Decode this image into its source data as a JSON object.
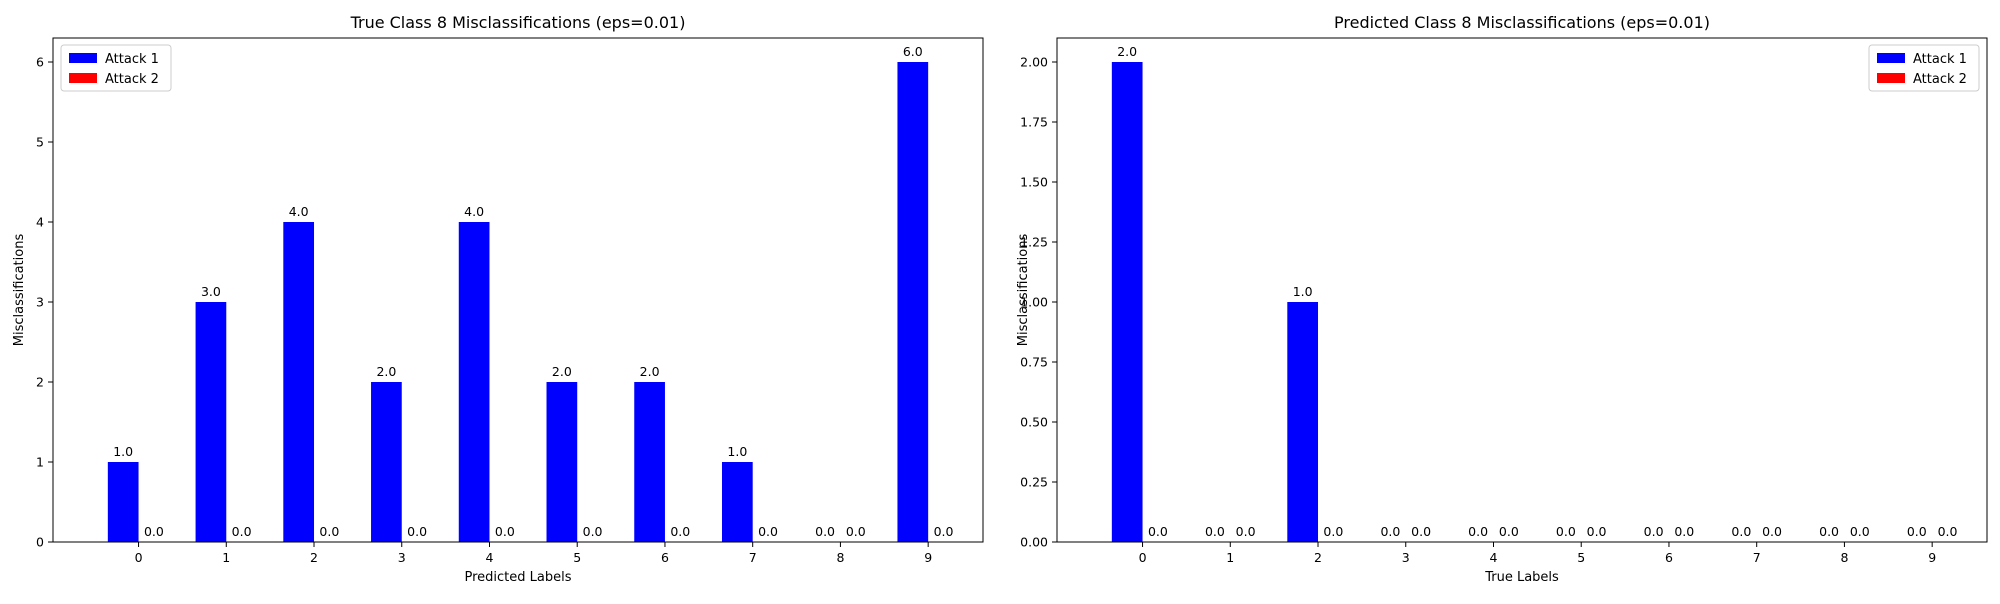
{
  "chart_data": [
    {
      "type": "bar",
      "title": "True Class 8 Misclassifications (eps=0.01)",
      "xlabel": "Predicted Labels",
      "ylabel": "Misclassifications",
      "categories": [
        "0",
        "1",
        "2",
        "3",
        "4",
        "5",
        "6",
        "7",
        "8",
        "9"
      ],
      "series": [
        {
          "name": "Attack 1",
          "color": "#0000ff",
          "values": [
            1,
            3,
            4,
            2,
            4,
            2,
            2,
            1,
            0,
            6
          ]
        },
        {
          "name": "Attack 2",
          "color": "#ff0000",
          "values": [
            0,
            0,
            0,
            0,
            0,
            0,
            0,
            0,
            0,
            0
          ]
        }
      ],
      "ylim": [
        0,
        6.3
      ],
      "yticks": [
        0,
        1,
        2,
        3,
        4,
        5,
        6
      ],
      "ytick_labels": [
        "0",
        "1",
        "2",
        "3",
        "4",
        "5",
        "6"
      ],
      "legend_loc": "upper left",
      "grid": false
    },
    {
      "type": "bar",
      "title": "Predicted Class 8 Misclassifications (eps=0.01)",
      "xlabel": "True Labels",
      "ylabel": "Misclassifications",
      "categories": [
        "0",
        "1",
        "2",
        "3",
        "4",
        "5",
        "6",
        "7",
        "8",
        "9"
      ],
      "series": [
        {
          "name": "Attack 1",
          "color": "#0000ff",
          "values": [
            2,
            0,
            1,
            0,
            0,
            0,
            0,
            0,
            0,
            0
          ]
        },
        {
          "name": "Attack 2",
          "color": "#ff0000",
          "values": [
            0,
            0,
            0,
            0,
            0,
            0,
            0,
            0,
            0,
            0
          ]
        }
      ],
      "ylim": [
        0,
        2.1
      ],
      "yticks": [
        0,
        0.25,
        0.5,
        0.75,
        1.0,
        1.25,
        1.5,
        1.75,
        2.0
      ],
      "ytick_labels": [
        "0.00",
        "0.25",
        "0.50",
        "0.75",
        "1.00",
        "1.25",
        "1.50",
        "1.75",
        "2.00"
      ],
      "legend_loc": "upper right",
      "grid": false
    }
  ]
}
